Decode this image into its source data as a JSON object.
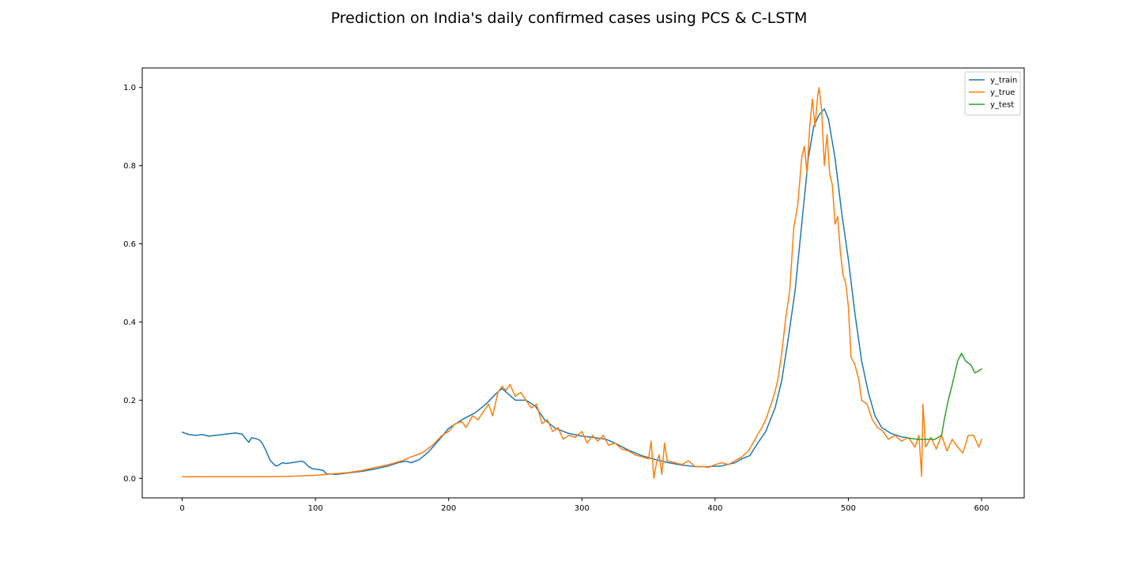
{
  "chart_data": {
    "type": "line",
    "title": "Prediction on India's daily confirmed cases using PCS & C-LSTM",
    "xlabel": "",
    "ylabel": "",
    "xlim": [
      -30,
      632
    ],
    "ylim": [
      -0.05,
      1.05
    ],
    "xticks": [
      0,
      100,
      200,
      300,
      400,
      500,
      600
    ],
    "yticks": [
      0.0,
      0.2,
      0.4,
      0.6,
      0.8,
      1.0
    ],
    "xtick_labels": [
      "0",
      "100",
      "200",
      "300",
      "400",
      "500",
      "600"
    ],
    "ytick_labels": [
      "0.0",
      "0.2",
      "0.4",
      "0.6",
      "0.8",
      "1.0"
    ],
    "grid": false,
    "legend_position": "top-right",
    "series": [
      {
        "name": "y_train",
        "color": "#1f77b4",
        "points": [
          [
            0,
            0.118
          ],
          [
            5,
            0.112
          ],
          [
            10,
            0.11
          ],
          [
            15,
            0.112
          ],
          [
            20,
            0.108
          ],
          [
            25,
            0.11
          ],
          [
            30,
            0.112
          ],
          [
            35,
            0.114
          ],
          [
            40,
            0.116
          ],
          [
            45,
            0.113
          ],
          [
            48,
            0.1
          ],
          [
            50,
            0.092
          ],
          [
            52,
            0.104
          ],
          [
            55,
            0.102
          ],
          [
            58,
            0.098
          ],
          [
            60,
            0.09
          ],
          [
            63,
            0.07
          ],
          [
            66,
            0.046
          ],
          [
            70,
            0.032
          ],
          [
            72,
            0.033
          ],
          [
            75,
            0.04
          ],
          [
            78,
            0.038
          ],
          [
            82,
            0.04
          ],
          [
            86,
            0.042
          ],
          [
            90,
            0.044
          ],
          [
            92,
            0.04
          ],
          [
            95,
            0.03
          ],
          [
            98,
            0.024
          ],
          [
            102,
            0.023
          ],
          [
            106,
            0.02
          ],
          [
            108,
            0.012
          ],
          [
            115,
            0.01
          ],
          [
            125,
            0.014
          ],
          [
            135,
            0.018
          ],
          [
            145,
            0.024
          ],
          [
            155,
            0.032
          ],
          [
            162,
            0.04
          ],
          [
            168,
            0.044
          ],
          [
            172,
            0.04
          ],
          [
            178,
            0.048
          ],
          [
            185,
            0.068
          ],
          [
            192,
            0.095
          ],
          [
            200,
            0.128
          ],
          [
            210,
            0.15
          ],
          [
            220,
            0.168
          ],
          [
            228,
            0.19
          ],
          [
            235,
            0.215
          ],
          [
            240,
            0.23
          ],
          [
            245,
            0.215
          ],
          [
            250,
            0.2
          ],
          [
            258,
            0.2
          ],
          [
            265,
            0.185
          ],
          [
            272,
            0.15
          ],
          [
            280,
            0.128
          ],
          [
            290,
            0.115
          ],
          [
            300,
            0.108
          ],
          [
            310,
            0.104
          ],
          [
            318,
            0.1
          ],
          [
            325,
            0.09
          ],
          [
            335,
            0.072
          ],
          [
            345,
            0.058
          ],
          [
            355,
            0.048
          ],
          [
            365,
            0.04
          ],
          [
            375,
            0.034
          ],
          [
            385,
            0.03
          ],
          [
            395,
            0.03
          ],
          [
            405,
            0.032
          ],
          [
            415,
            0.04
          ],
          [
            420,
            0.05
          ],
          [
            426,
            0.058
          ],
          [
            432,
            0.09
          ],
          [
            438,
            0.12
          ],
          [
            445,
            0.18
          ],
          [
            450,
            0.25
          ],
          [
            455,
            0.36
          ],
          [
            460,
            0.48
          ],
          [
            465,
            0.65
          ],
          [
            470,
            0.82
          ],
          [
            474,
            0.9
          ],
          [
            478,
            0.93
          ],
          [
            482,
            0.945
          ],
          [
            485,
            0.92
          ],
          [
            490,
            0.82
          ],
          [
            495,
            0.68
          ],
          [
            500,
            0.56
          ],
          [
            505,
            0.42
          ],
          [
            510,
            0.3
          ],
          [
            515,
            0.22
          ],
          [
            520,
            0.16
          ],
          [
            525,
            0.13
          ],
          [
            532,
            0.115
          ],
          [
            540,
            0.106
          ],
          [
            545,
            0.104
          ]
        ]
      },
      {
        "name": "y_true",
        "color": "#ff7f0e",
        "points": [
          [
            0,
            0.004
          ],
          [
            30,
            0.004
          ],
          [
            60,
            0.004
          ],
          [
            80,
            0.005
          ],
          [
            100,
            0.008
          ],
          [
            115,
            0.012
          ],
          [
            125,
            0.015
          ],
          [
            135,
            0.02
          ],
          [
            145,
            0.028
          ],
          [
            155,
            0.035
          ],
          [
            165,
            0.045
          ],
          [
            172,
            0.055
          ],
          [
            180,
            0.065
          ],
          [
            188,
            0.085
          ],
          [
            195,
            0.11
          ],
          [
            200,
            0.12
          ],
          [
            205,
            0.14
          ],
          [
            210,
            0.145
          ],
          [
            213,
            0.13
          ],
          [
            218,
            0.16
          ],
          [
            222,
            0.15
          ],
          [
            226,
            0.17
          ],
          [
            230,
            0.19
          ],
          [
            233,
            0.16
          ],
          [
            237,
            0.22
          ],
          [
            240,
            0.235
          ],
          [
            243,
            0.225
          ],
          [
            246,
            0.24
          ],
          [
            250,
            0.21
          ],
          [
            254,
            0.22
          ],
          [
            258,
            0.2
          ],
          [
            262,
            0.18
          ],
          [
            266,
            0.19
          ],
          [
            270,
            0.14
          ],
          [
            274,
            0.15
          ],
          [
            278,
            0.12
          ],
          [
            282,
            0.13
          ],
          [
            286,
            0.1
          ],
          [
            290,
            0.11
          ],
          [
            295,
            0.105
          ],
          [
            300,
            0.12
          ],
          [
            304,
            0.09
          ],
          [
            308,
            0.11
          ],
          [
            312,
            0.095
          ],
          [
            316,
            0.11
          ],
          [
            320,
            0.085
          ],
          [
            325,
            0.09
          ],
          [
            330,
            0.075
          ],
          [
            335,
            0.07
          ],
          [
            340,
            0.06
          ],
          [
            345,
            0.055
          ],
          [
            350,
            0.05
          ],
          [
            352,
            0.095
          ],
          [
            354,
            0.0
          ],
          [
            356,
            0.04
          ],
          [
            358,
            0.06
          ],
          [
            360,
            0.01
          ],
          [
            362,
            0.09
          ],
          [
            364,
            0.045
          ],
          [
            370,
            0.04
          ],
          [
            375,
            0.035
          ],
          [
            380,
            0.045
          ],
          [
            385,
            0.03
          ],
          [
            390,
            0.03
          ],
          [
            395,
            0.028
          ],
          [
            400,
            0.035
          ],
          [
            405,
            0.04
          ],
          [
            410,
            0.035
          ],
          [
            415,
            0.045
          ],
          [
            420,
            0.055
          ],
          [
            425,
            0.07
          ],
          [
            430,
            0.1
          ],
          [
            435,
            0.13
          ],
          [
            438,
            0.15
          ],
          [
            441,
            0.18
          ],
          [
            444,
            0.21
          ],
          [
            447,
            0.25
          ],
          [
            450,
            0.32
          ],
          [
            453,
            0.41
          ],
          [
            456,
            0.48
          ],
          [
            459,
            0.64
          ],
          [
            462,
            0.7
          ],
          [
            465,
            0.82
          ],
          [
            467,
            0.85
          ],
          [
            469,
            0.78
          ],
          [
            471,
            0.9
          ],
          [
            473,
            0.97
          ],
          [
            475,
            0.9
          ],
          [
            477,
            0.98
          ],
          [
            478,
            1.0
          ],
          [
            480,
            0.94
          ],
          [
            482,
            0.8
          ],
          [
            484,
            0.88
          ],
          [
            486,
            0.78
          ],
          [
            488,
            0.75
          ],
          [
            490,
            0.65
          ],
          [
            492,
            0.67
          ],
          [
            494,
            0.58
          ],
          [
            496,
            0.52
          ],
          [
            498,
            0.5
          ],
          [
            500,
            0.44
          ],
          [
            502,
            0.31
          ],
          [
            505,
            0.29
          ],
          [
            508,
            0.25
          ],
          [
            510,
            0.2
          ],
          [
            514,
            0.19
          ],
          [
            518,
            0.15
          ],
          [
            522,
            0.13
          ],
          [
            526,
            0.12
          ],
          [
            530,
            0.1
          ],
          [
            535,
            0.11
          ],
          [
            540,
            0.095
          ],
          [
            545,
            0.105
          ],
          [
            550,
            0.08
          ],
          [
            553,
            0.11
          ],
          [
            555,
            0.005
          ],
          [
            556,
            0.19
          ],
          [
            558,
            0.08
          ],
          [
            562,
            0.105
          ],
          [
            566,
            0.075
          ],
          [
            570,
            0.11
          ],
          [
            574,
            0.07
          ],
          [
            578,
            0.1
          ],
          [
            582,
            0.08
          ],
          [
            586,
            0.065
          ],
          [
            590,
            0.11
          ],
          [
            594,
            0.11
          ],
          [
            598,
            0.08
          ],
          [
            600,
            0.1
          ]
        ]
      },
      {
        "name": "y_test",
        "color": "#2ca02c",
        "points": [
          [
            545,
            0.103
          ],
          [
            552,
            0.1
          ],
          [
            558,
            0.1
          ],
          [
            565,
            0.1
          ],
          [
            570,
            0.11
          ],
          [
            572,
            0.15
          ],
          [
            575,
            0.2
          ],
          [
            578,
            0.24
          ],
          [
            582,
            0.3
          ],
          [
            585,
            0.32
          ],
          [
            588,
            0.3
          ],
          [
            592,
            0.29
          ],
          [
            595,
            0.27
          ],
          [
            598,
            0.275
          ],
          [
            600,
            0.28
          ]
        ]
      }
    ]
  }
}
